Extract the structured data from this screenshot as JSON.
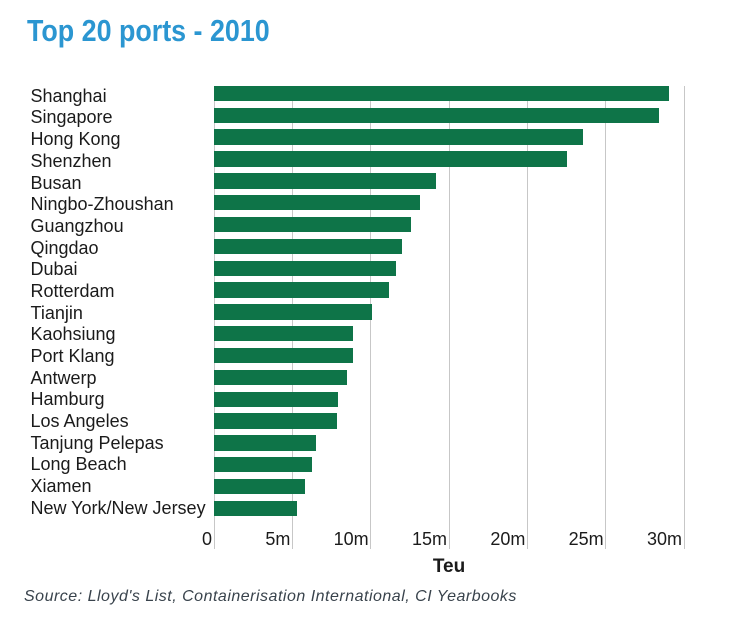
{
  "title": {
    "text": "Top 20 ports - 2010",
    "color": "#2B96D1"
  },
  "source": {
    "text": "Source: Lloyd's List, Containerisation International, CI Yearbooks",
    "color": "#39434C"
  },
  "chart_data": {
    "type": "bar",
    "orientation": "horizontal",
    "title": "Top 20 ports - 2010",
    "xlabel": "Teu",
    "unit": "million TEU",
    "categories": [
      "Shanghai",
      "Singapore",
      "Hong Kong",
      "Shenzhen",
      "Busan",
      "Ningbo-Zhoushan",
      "Guangzhou",
      "Qingdao",
      "Dubai",
      "Rotterdam",
      "Tianjin",
      "Kaohsiung",
      "Port Klang",
      "Antwerp",
      "Hamburg",
      "Los Angeles",
      "Tanjung Pelepas",
      "Long Beach",
      "Xiamen",
      "New York/New Jersey"
    ],
    "values": [
      29.07,
      28.43,
      23.55,
      22.51,
      14.19,
      13.14,
      12.55,
      12.01,
      11.6,
      11.14,
      10.08,
      8.87,
      8.87,
      8.47,
      7.9,
      7.83,
      6.54,
      6.26,
      5.82,
      5.29
    ],
    "xlim": [
      0,
      30
    ],
    "xticks": [
      0,
      5,
      10,
      15,
      20,
      25,
      30
    ],
    "xtick_labels": [
      "0",
      "5m",
      "10m",
      "15m",
      "20m",
      "25m",
      "30m"
    ],
    "bar_color": "#0E7448",
    "grid_color": "#C7C7C7",
    "grid": true,
    "legend": false
  }
}
